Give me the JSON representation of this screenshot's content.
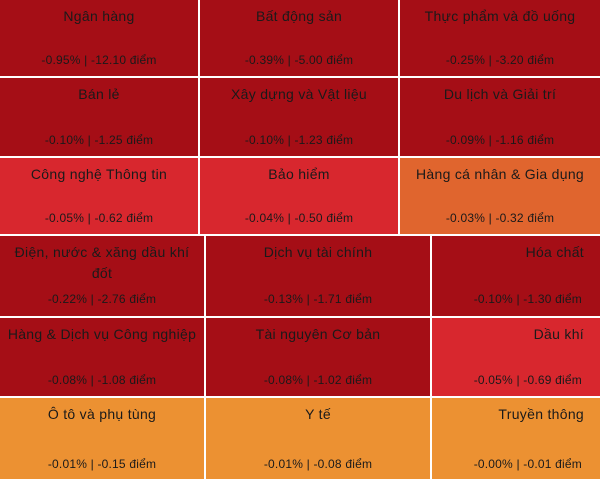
{
  "colors": {
    "deep_red": "#a50e16",
    "red": "#d8272e",
    "orange_red": "#e0652e",
    "orange": "#ec9132"
  },
  "chart_data": {
    "type": "heatmap",
    "cells": [
      {
        "label": "Ngân hàng",
        "stat": "-0.95% | -12.10 điểm",
        "pct": -0.95,
        "points": -12.1,
        "color": "#a50e16"
      },
      {
        "label": "Bất động sản",
        "stat": "-0.39% | -5.00 điểm",
        "pct": -0.39,
        "points": -5.0,
        "color": "#a50e16"
      },
      {
        "label": "Thực phẩm và đồ uống",
        "stat": "-0.25% | -3.20 điểm",
        "pct": -0.25,
        "points": -3.2,
        "color": "#a50e16"
      },
      {
        "label": "Bán lẻ",
        "stat": "-0.10% | -1.25 điểm",
        "pct": -0.1,
        "points": -1.25,
        "color": "#a50e16"
      },
      {
        "label": "Xây dựng và Vật liệu",
        "stat": "-0.10% | -1.23 điểm",
        "pct": -0.1,
        "points": -1.23,
        "color": "#a50e16"
      },
      {
        "label": "Du lịch và Giải trí",
        "stat": "-0.09% | -1.16 điểm",
        "pct": -0.09,
        "points": -1.16,
        "color": "#a50e16"
      },
      {
        "label": "Công nghệ Thông tin",
        "stat": "-0.05% | -0.62 điểm",
        "pct": -0.05,
        "points": -0.62,
        "color": "#d8272e"
      },
      {
        "label": "Bảo hiểm",
        "stat": "-0.04% | -0.50 điểm",
        "pct": -0.04,
        "points": -0.5,
        "color": "#d8272e"
      },
      {
        "label": "Hàng cá nhân & Gia dụng",
        "stat": "-0.03% | -0.32 điểm",
        "pct": -0.03,
        "points": -0.32,
        "color": "#e0652e"
      },
      {
        "label": "Điện, nước & xăng dầu khí đốt",
        "stat": "-0.22% | -2.76 điểm",
        "pct": -0.22,
        "points": -2.76,
        "color": "#a50e16"
      },
      {
        "label": "Dịch vụ tài chính",
        "stat": "-0.13% | -1.71 điểm",
        "pct": -0.13,
        "points": -1.71,
        "color": "#a50e16"
      },
      {
        "label": "Hóa chất",
        "stat": "-0.10% | -1.30 điểm",
        "pct": -0.1,
        "points": -1.3,
        "color": "#a50e16"
      },
      {
        "label": "Hàng & Dịch vụ Công nghiệp",
        "stat": "-0.08% | -1.08 điểm",
        "pct": -0.08,
        "points": -1.08,
        "color": "#a50e16"
      },
      {
        "label": "Tài nguyên Cơ bản",
        "stat": "-0.08% | -1.02 điểm",
        "pct": -0.08,
        "points": -1.02,
        "color": "#a50e16"
      },
      {
        "label": "Dầu khí",
        "stat": "-0.05% | -0.69 điểm",
        "pct": -0.05,
        "points": -0.69,
        "color": "#d8272e"
      },
      {
        "label": "Ô tô và phụ tùng",
        "stat": "-0.01% | -0.15 điểm",
        "pct": -0.01,
        "points": -0.15,
        "color": "#ec9132"
      },
      {
        "label": "Y tế",
        "stat": "-0.01% | -0.08 điểm",
        "pct": -0.01,
        "points": -0.08,
        "color": "#ec9132"
      },
      {
        "label": "Truyền thông",
        "stat": "-0.00% | -0.01 điểm",
        "pct": -0.0,
        "points": -0.01,
        "color": "#ec9132"
      }
    ]
  }
}
